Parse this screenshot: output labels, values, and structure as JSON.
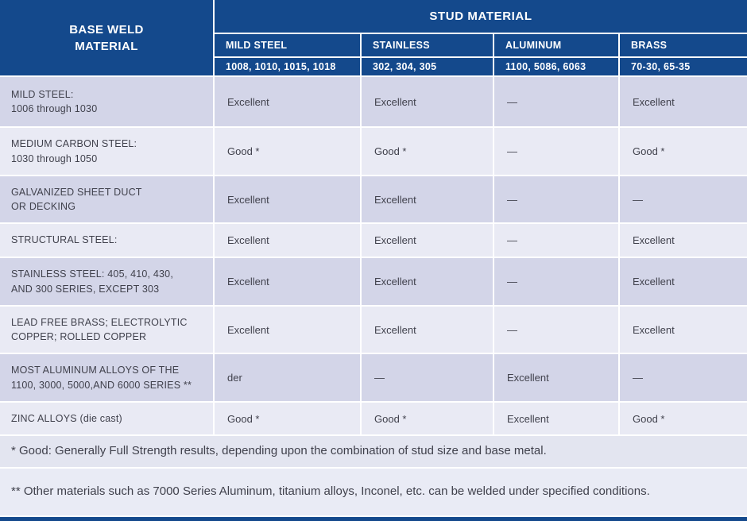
{
  "colors": {
    "header_blue": "#14498c",
    "row_dark": "#d3d5e8",
    "row_light": "#e9eaf4",
    "note1_bg": "#e3e5f0",
    "note2_bg": "#e9ebf5",
    "text_dark": "#40414c",
    "header_text": "#ffffff"
  },
  "header": {
    "base_column_title": "BASE WELD\nMATERIAL",
    "stud_title": "STUD MATERIAL",
    "columns": [
      {
        "name": "MILD STEEL",
        "grades": "1008, 1010, 1015, 1018"
      },
      {
        "name": "STAINLESS",
        "grades": "302, 304, 305"
      },
      {
        "name": "ALUMINUM",
        "grades": "1100, 5086, 6063"
      },
      {
        "name": "BRASS",
        "grades": "70-30, 65-35"
      }
    ]
  },
  "table": {
    "rows": [
      {
        "label": "MILD STEEL:\n1006 through 1030",
        "values": [
          "Excellent",
          "Excellent",
          "—",
          "Excellent"
        ]
      },
      {
        "label": "MEDIUM CARBON STEEL:\n1030 through 1050",
        "values": [
          "Good *",
          "Good *",
          "—",
          "Good *"
        ]
      },
      {
        "label": "GALVANIZED SHEET DUCT\nOR DECKING",
        "values": [
          "Excellent",
          "Excellent",
          "—",
          "—"
        ]
      },
      {
        "label": "STRUCTURAL STEEL:",
        "values": [
          "Excellent",
          "Excellent",
          "—",
          "Excellent"
        ]
      },
      {
        "label": "STAINLESS STEEL: 405, 410, 430,\nAND 300 SERIES, EXCEPT 303",
        "values": [
          "Excellent",
          "Excellent",
          "—",
          "Excellent"
        ]
      },
      {
        "label": "LEAD FREE BRASS; ELECTROLYTIC\nCOPPER; ROLLED COPPER",
        "values": [
          "Excellent",
          "Excellent",
          "—",
          "Excellent"
        ]
      },
      {
        "label": "MOST ALUMINUM ALLOYS OF THE\n1100, 3000, 5000,AND 6000 SERIES **",
        "values": [
          "der",
          "—",
          "Excellent",
          "—"
        ]
      },
      {
        "label": "ZINC ALLOYS (die cast)",
        "values": [
          "Good *",
          "Good *",
          "Excellent",
          "Good *"
        ]
      }
    ]
  },
  "notes": [
    "* Good: Generally Full Strength results, depending upon the combination of stud size and base metal.",
    "** Other materials such as 7000 Series Aluminum, titanium alloys, Inconel, etc. can be welded under specified conditions."
  ]
}
